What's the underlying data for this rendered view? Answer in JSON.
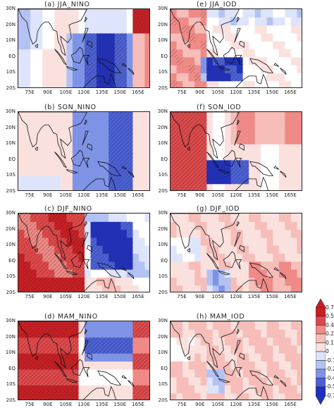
{
  "panels": [
    {
      "letter": "(a)",
      "name": "JJA_NINO",
      "pattern": "nino_jja"
    },
    {
      "letter": "(e)",
      "name": "JJA_IOD",
      "pattern": "iod_jja"
    },
    {
      "letter": "(b)",
      "name": "SON_NINO",
      "pattern": "nino_son"
    },
    {
      "letter": "(f)",
      "name": "SON_IOD",
      "pattern": "iod_son"
    },
    {
      "letter": "(c)",
      "name": "DJF_NINO",
      "pattern": "nino_djf"
    },
    {
      "letter": "(g)",
      "name": "DJF_IOD",
      "pattern": "iod_djf"
    },
    {
      "letter": "(d)",
      "name": "MAM_NINO",
      "pattern": "nino_mam"
    },
    {
      "letter": "(h)",
      "name": "MAM_IOD",
      "pattern": "iod_mam"
    }
  ],
  "lat_labels": [
    "30N",
    "20N",
    "10N",
    "EQ",
    "10S",
    "20S"
  ],
  "lon_labels": [
    "75E",
    "90E",
    "105E",
    "120E",
    "135E",
    "150E",
    "165E"
  ],
  "colorbar": {
    "ticks": [
      "0.7",
      "0.56",
      "0.42",
      "0.28",
      "0.14",
      "0",
      "-0.14",
      "-0.28",
      "-0.42",
      "-0.56",
      "-0.7"
    ],
    "colors": [
      "#c81e23",
      "#e0484a",
      "#ef8a86",
      "#f6bdb9",
      "#fbe1de",
      "#ffffff",
      "#dde4fb",
      "#b4c2f3",
      "#7f93e6",
      "#4b60d6",
      "#2030bf"
    ]
  }
}
